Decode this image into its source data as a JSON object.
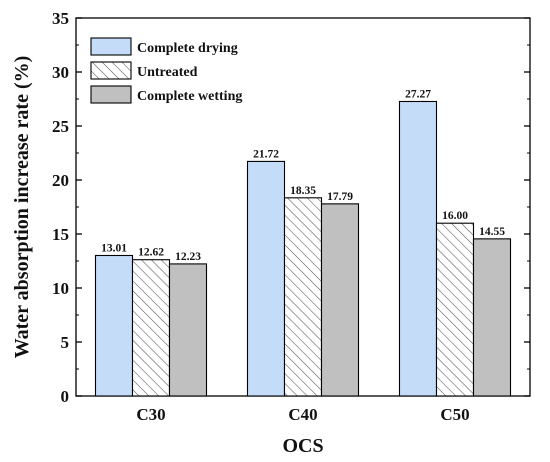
{
  "chart_data": {
    "type": "bar",
    "xlabel": "OCS",
    "ylabel": "Water absorption increase rate (%)",
    "categories": [
      "C30",
      "C40",
      "C50"
    ],
    "ylim": [
      0,
      35
    ],
    "yticks": [
      0,
      5,
      10,
      15,
      20,
      25,
      30,
      35
    ],
    "grid": false,
    "legend_position": "top-left",
    "series": [
      {
        "name": "Complete drying",
        "values": [
          13.01,
          21.72,
          27.27
        ],
        "labels": [
          "13.01",
          "21.72",
          "27.27"
        ],
        "color": "#c5dcf9",
        "pattern": "solid"
      },
      {
        "name": "Untreated",
        "values": [
          12.62,
          18.35,
          16.0
        ],
        "labels": [
          "12.62",
          "18.35",
          "16.00"
        ],
        "color": "#ffffff",
        "pattern": "hatch"
      },
      {
        "name": "Complete wetting",
        "values": [
          12.23,
          17.79,
          14.55
        ],
        "labels": [
          "12.23",
          "17.79",
          "14.55"
        ],
        "color": "#c0c0c0",
        "pattern": "solid"
      }
    ]
  }
}
